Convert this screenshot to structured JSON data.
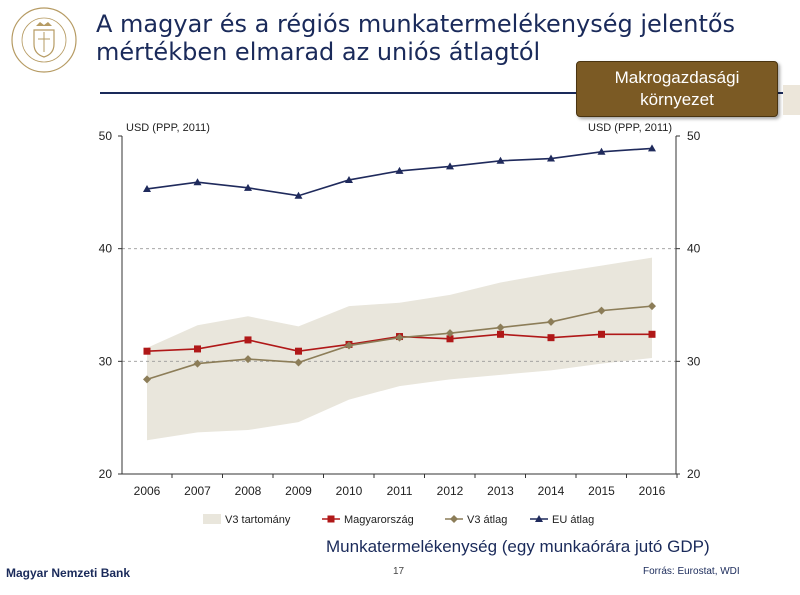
{
  "header": {
    "title_line1": "A magyar és a régiós munkatermelékenység jelentős",
    "title_line2": "mértékben elmarad az uniós átlagtól",
    "badge_line1": "Makrogazdasági",
    "badge_line2": "környezet",
    "logo_text": "MAGYAR NEMZETI BANK"
  },
  "colors": {
    "title": "#1a2a5a",
    "badge": "#7b5a24",
    "band": "#e9e6dc",
    "hungary": "#b01818",
    "v3_avg": "#8c7d58",
    "eu_avg": "#1f2a5c"
  },
  "chart_data": {
    "type": "line",
    "title": "",
    "ylabel_left": "USD (PPP, 2011)",
    "ylabel_right": "USD (PPP, 2011)",
    "x": [
      "2006",
      "2007",
      "2008",
      "2009",
      "2010",
      "2011",
      "2012",
      "2013",
      "2014",
      "2015",
      "2016"
    ],
    "ylim": [
      20,
      50
    ],
    "yticks": [
      20,
      30,
      40,
      50
    ],
    "grid": "dashed horizontal at 30 and 40",
    "legend_position": "bottom",
    "band": {
      "name": "V3 tartomány",
      "low": [
        23.0,
        23.7,
        23.9,
        24.6,
        26.6,
        27.8,
        28.4,
        28.8,
        29.2,
        29.8,
        30.3
      ],
      "high": [
        31.2,
        33.2,
        34.0,
        33.1,
        34.9,
        35.2,
        35.9,
        37.0,
        37.8,
        38.5,
        39.2
      ]
    },
    "series": [
      {
        "name": "Magyarország",
        "marker": "square",
        "values": [
          30.9,
          31.1,
          31.9,
          30.9,
          31.5,
          32.2,
          32.0,
          32.4,
          32.1,
          32.4,
          32.4
        ]
      },
      {
        "name": "V3 átlag",
        "marker": "diamond",
        "values": [
          28.4,
          29.8,
          30.2,
          29.9,
          31.4,
          32.1,
          32.5,
          33.0,
          33.5,
          34.5,
          34.9
        ]
      },
      {
        "name": "EU átlag",
        "marker": "triangle",
        "values": [
          45.3,
          45.9,
          45.4,
          44.7,
          46.1,
          46.9,
          47.3,
          47.8,
          48.0,
          48.6,
          48.9
        ]
      }
    ],
    "subtitle": "Munkatermelékenység (egy munkaórára jutó GDP)"
  },
  "footer": {
    "bank": "Magyar Nemzeti Bank",
    "page": "17",
    "source": "Forrás: Eurostat, WDI"
  }
}
